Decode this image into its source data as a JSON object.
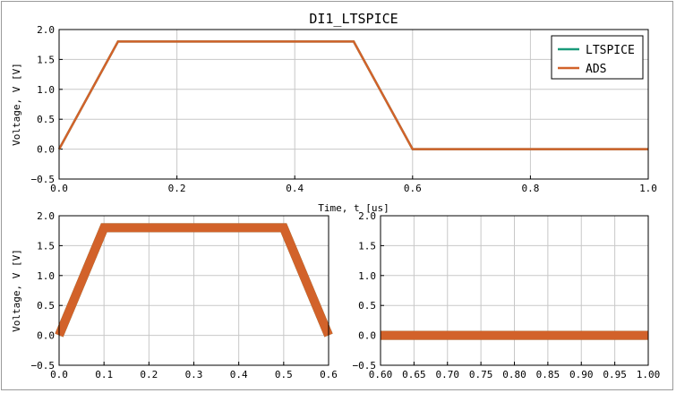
{
  "chart_data": [
    {
      "id": "top",
      "type": "line",
      "title": "DI1_LTSPICE",
      "xlabel": "Time, t [us]",
      "ylabel": "Voltage, V [V]",
      "xlim": [
        0.0,
        1.0
      ],
      "ylim": [
        -0.5,
        2.0
      ],
      "xticks": [
        "0.0",
        "0.2",
        "0.4",
        "0.6",
        "0.8",
        "1.0"
      ],
      "yticks": [
        "−0.5",
        "0.0",
        "0.5",
        "1.0",
        "1.5",
        "2.0"
      ],
      "grid": true,
      "legend": {
        "placement": "top-right",
        "entries": [
          "LTSPICE",
          "ADS"
        ]
      },
      "series": [
        {
          "name": "LTSPICE",
          "color": "#1a9a7a",
          "x": [
            0,
            0.1,
            0.5,
            0.6,
            1.0
          ],
          "y": [
            0,
            1.8,
            1.8,
            0,
            0
          ]
        },
        {
          "name": "ADS",
          "color": "#d2622a",
          "x": [
            0,
            0.1,
            0.5,
            0.6,
            1.0
          ],
          "y": [
            0,
            1.8,
            1.8,
            0,
            0
          ]
        }
      ]
    },
    {
      "id": "bottom-left",
      "type": "line",
      "ylabel": "Voltage, V [V]",
      "xlim": [
        0.0,
        0.6
      ],
      "ylim": [
        -0.5,
        2.0
      ],
      "xticks": [
        "0.0",
        "0.1",
        "0.2",
        "0.3",
        "0.4",
        "0.5",
        "0.6"
      ],
      "yticks": [
        "−0.5",
        "0.0",
        "0.5",
        "1.0",
        "1.5",
        "2.0"
      ],
      "grid": true,
      "series": [
        {
          "name": "LTSPICE",
          "color": "#1a9a7a",
          "x": [
            0,
            0.1,
            0.5,
            0.6
          ],
          "y": [
            0,
            1.8,
            1.8,
            0
          ]
        },
        {
          "name": "ADS",
          "color": "#d2622a",
          "x": [
            0,
            0.1,
            0.5,
            0.6
          ],
          "y": [
            0,
            1.8,
            1.8,
            0
          ]
        }
      ]
    },
    {
      "id": "bottom-right",
      "type": "line",
      "xlim": [
        0.6,
        1.0
      ],
      "ylim": [
        -0.5,
        2.0
      ],
      "xticks": [
        "0.60",
        "0.65",
        "0.70",
        "0.75",
        "0.80",
        "0.85",
        "0.90",
        "0.95",
        "1.00"
      ],
      "yticks": [
        "−0.5",
        "0.0",
        "0.5",
        "1.0",
        "1.5",
        "2.0"
      ],
      "grid": true,
      "series": [
        {
          "name": "LTSPICE",
          "color": "#1a9a7a",
          "x": [
            0.6,
            1.0
          ],
          "y": [
            0,
            0
          ]
        },
        {
          "name": "ADS",
          "color": "#d2622a",
          "x": [
            0.6,
            1.0
          ],
          "y": [
            0,
            0
          ]
        }
      ]
    }
  ]
}
